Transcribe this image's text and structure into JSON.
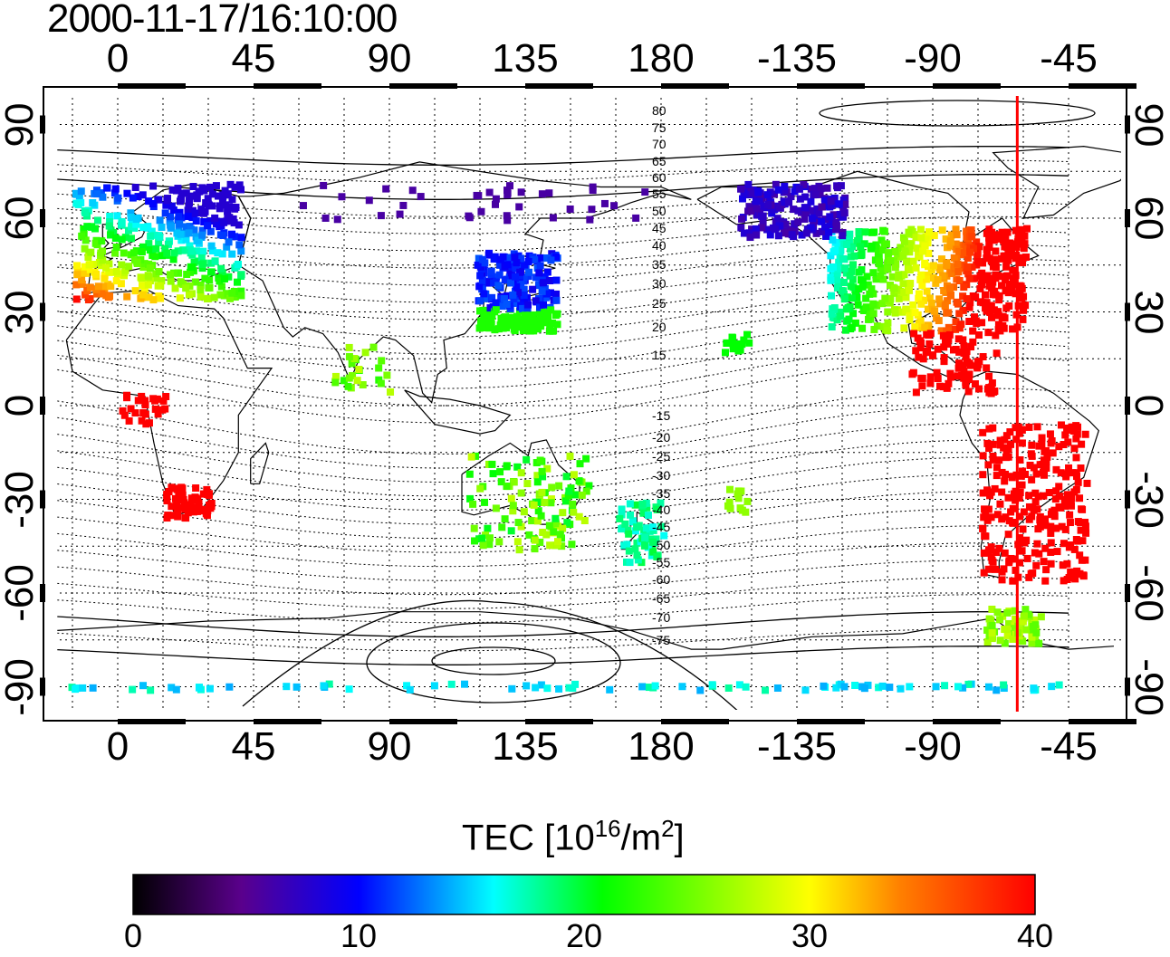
{
  "title": "2000-11-17/16:10:00",
  "axes": {
    "x_top_ticks": [
      "0",
      "45",
      "90",
      "135",
      "180",
      "-135",
      "-90",
      "-45"
    ],
    "x_bottom_ticks": [
      "0",
      "45",
      "90",
      "135",
      "180",
      "-135",
      "-90",
      "-45"
    ],
    "y_left_ticks": [
      "90",
      "60",
      "30",
      "0",
      "-30",
      "-60",
      "-90"
    ],
    "y_right_ticks": [
      "90",
      "60",
      "30",
      "0",
      "-30",
      "-60",
      "-90"
    ],
    "lon_range": [
      -20,
      315
    ],
    "lat_range": [
      -92,
      92
    ],
    "grid": true
  },
  "magnetic_latitude_labels": [
    "80",
    "75",
    "70",
    "65",
    "60",
    "55",
    "50",
    "45",
    "40",
    "35",
    "30",
    "25",
    "20",
    "15",
    "-15",
    "-20",
    "-25",
    "-30",
    "-35",
    "-40",
    "-45",
    "-50",
    "-55",
    "-60",
    "-65",
    "-70",
    "-75"
  ],
  "colorbar": {
    "label_main": "TEC  [10",
    "label_sup1": "16",
    "label_mid": "/m",
    "label_sup2": "2",
    "label_end": "]",
    "ticks": [
      "0",
      "10",
      "20",
      "30",
      "40"
    ],
    "range": [
      0,
      40
    ],
    "colors": [
      "#000000",
      "#5a008c",
      "#0000ff",
      "#00ffff",
      "#00ff00",
      "#ffff00",
      "#ff8000",
      "#ff0000"
    ]
  },
  "marker_line": {
    "color": "#ff0000",
    "longitude": -62
  },
  "colors": {
    "background": "#ffffff",
    "coast": "#000000",
    "grid": "#000000"
  }
}
